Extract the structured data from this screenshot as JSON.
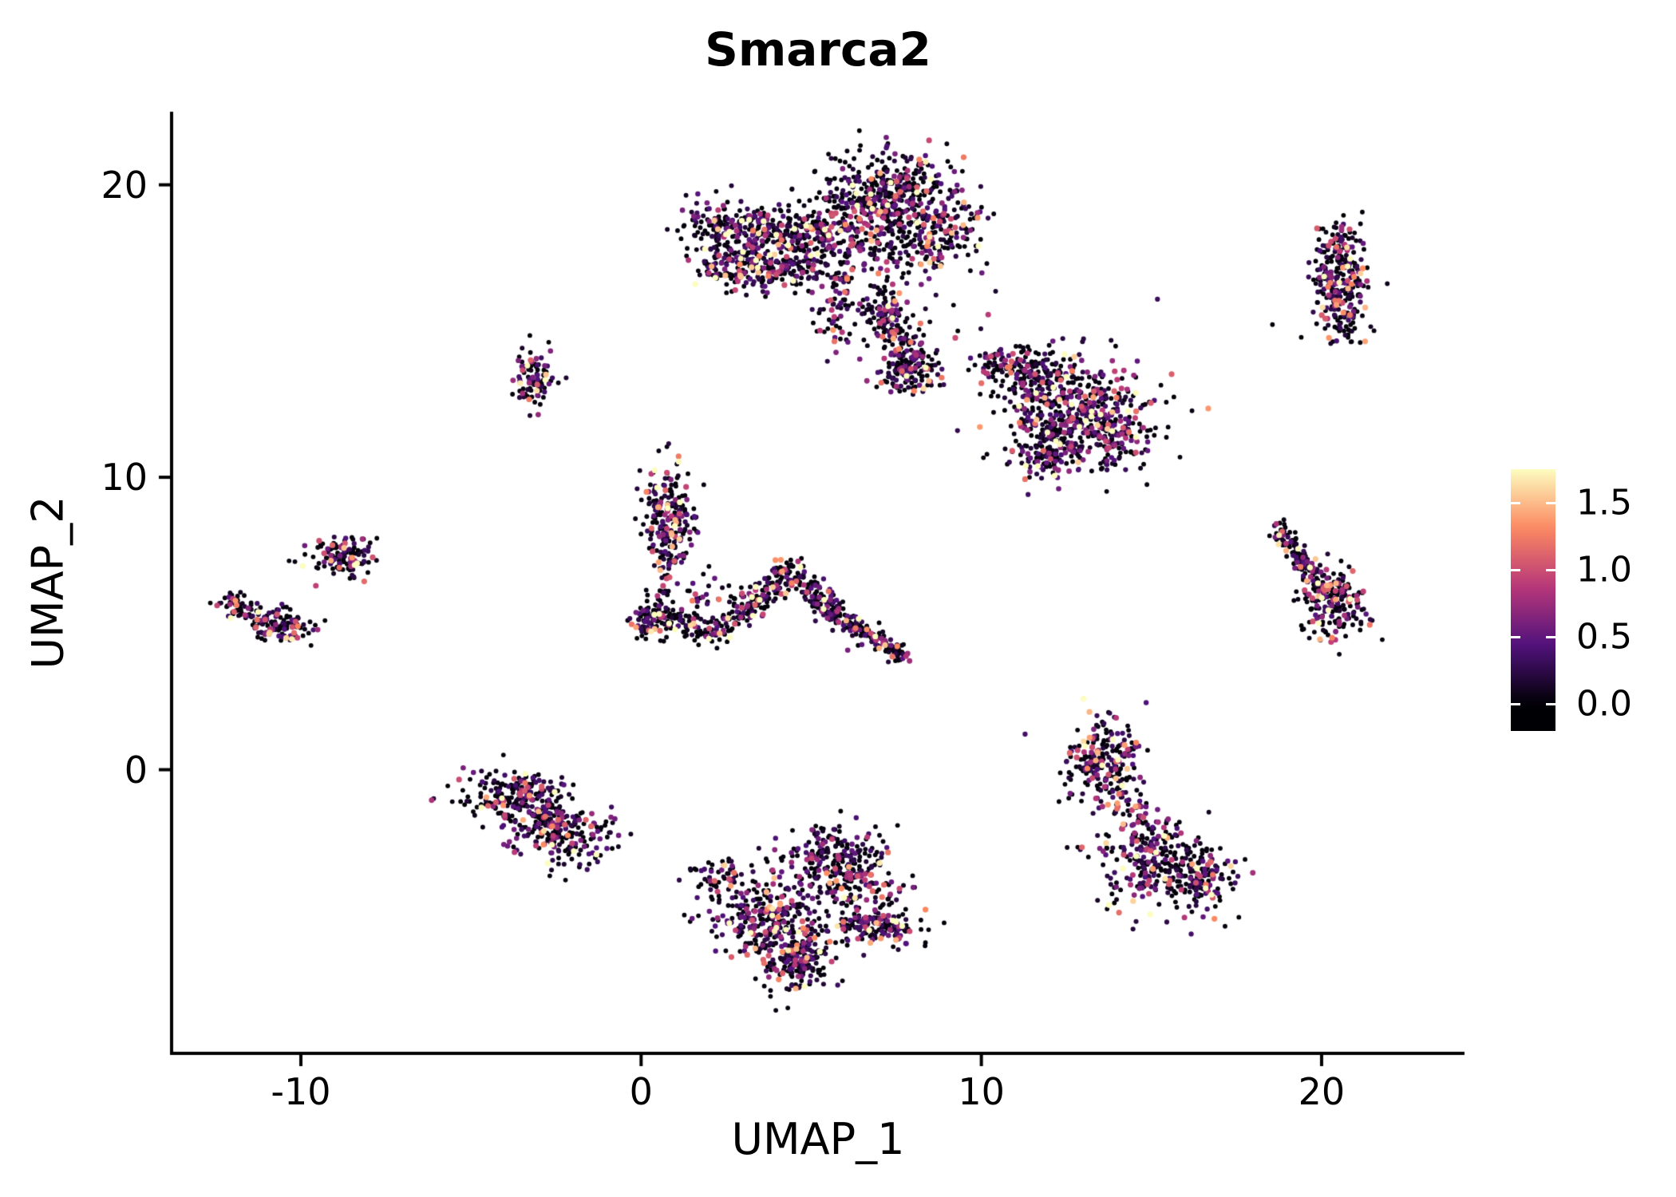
{
  "chart_data": {
    "type": "scatter",
    "title": "Smarca2",
    "xlabel": "UMAP_1",
    "ylabel": "UMAP_2",
    "xlim": [
      -13.8,
      24.2
    ],
    "ylim": [
      -9.7,
      22.5
    ],
    "xticks": [
      -10,
      0,
      10,
      20
    ],
    "yticks": [
      0,
      10,
      20
    ],
    "grid": false,
    "legend_position": "right",
    "seed": 42,
    "point_vmax": 1.75,
    "zero_fraction": 0.42,
    "expr_mean": 0.5,
    "colormap": {
      "name": "magma",
      "stops": [
        [
          0,
          "#000004"
        ],
        [
          0.25,
          "#51127c"
        ],
        [
          0.5,
          "#b73779"
        ],
        [
          0.75,
          "#fc8961"
        ],
        [
          1,
          "#fcfdbf"
        ]
      ]
    },
    "colorbar": {
      "ticks": [
        0,
        0.5,
        1,
        1.5
      ],
      "tick_labels": [
        "0.0",
        "0.5",
        "1.0",
        "1.5"
      ],
      "vmin": -0.2,
      "vmax": 1.75
    },
    "clusters": [
      {
        "kind": "strip",
        "x1": 1.7,
        "y1": 18.6,
        "x2": 5.6,
        "y2": 18.2,
        "s": 0.45,
        "n": 380
      },
      {
        "kind": "strip",
        "x1": 1.9,
        "y1": 17.3,
        "x2": 5.2,
        "y2": 17.0,
        "s": 0.35,
        "n": 260
      },
      {
        "kind": "blob",
        "x": 7.5,
        "y": 19.7,
        "sx": 0.9,
        "sy": 0.8,
        "n": 300
      },
      {
        "kind": "strip",
        "x1": 5.6,
        "y1": 18.0,
        "x2": 9.3,
        "y2": 17.8,
        "s": 0.55,
        "n": 220
      },
      {
        "kind": "blob",
        "x": 9.0,
        "y": 18.6,
        "sx": 0.6,
        "sy": 0.5,
        "n": 80
      },
      {
        "kind": "strip",
        "x1": 6.9,
        "y1": 16.3,
        "x2": 8.1,
        "y2": 13.7,
        "s": 0.3,
        "n": 170
      },
      {
        "kind": "blob",
        "x": 7.9,
        "y": 13.5,
        "sx": 0.45,
        "sy": 0.35,
        "n": 110
      },
      {
        "kind": "strip",
        "x1": 5.9,
        "y1": 16.9,
        "x2": 5.5,
        "y2": 14.7,
        "s": 0.25,
        "n": 55
      },
      {
        "kind": "blob",
        "x": 7.3,
        "y": 15.0,
        "sx": 1.1,
        "sy": 0.7,
        "n": 55
      },
      {
        "kind": "blob",
        "x": 10.4,
        "y": 13.9,
        "sx": 0.35,
        "sy": 0.3,
        "n": 45
      },
      {
        "kind": "blob",
        "x": 6.4,
        "y": 19.3,
        "sx": 0.7,
        "sy": 0.6,
        "n": 120
      },
      {
        "kind": "blob",
        "x": 12.7,
        "y": 12.2,
        "sx": 1.05,
        "sy": 0.95,
        "n": 520
      },
      {
        "kind": "blob",
        "x": 11.5,
        "y": 13.6,
        "sx": 0.55,
        "sy": 0.45,
        "n": 110
      },
      {
        "kind": "blob",
        "x": 14.0,
        "y": 11.3,
        "sx": 0.5,
        "sy": 0.5,
        "n": 90
      },
      {
        "kind": "blob",
        "x": 12.0,
        "y": 10.8,
        "sx": 0.5,
        "sy": 0.4,
        "n": 80
      },
      {
        "kind": "strip",
        "x1": 20.5,
        "y1": 18.3,
        "x2": 20.6,
        "y2": 15.1,
        "s": 0.42,
        "n": 300
      },
      {
        "kind": "blob",
        "x": -3.1,
        "y": 13.5,
        "sx": 0.3,
        "sy": 0.55,
        "n": 90
      },
      {
        "kind": "blob",
        "x": 0.9,
        "y": 8.6,
        "sx": 0.42,
        "sy": 0.85,
        "n": 210
      },
      {
        "kind": "blob",
        "x": 0.3,
        "y": 5.1,
        "sx": 0.35,
        "sy": 0.3,
        "n": 80
      },
      {
        "kind": "strip",
        "x1": 0.7,
        "y1": 5.1,
        "x2": 2.4,
        "y2": 4.7,
        "s": 0.22,
        "n": 90
      },
      {
        "kind": "strip",
        "x1": 2.6,
        "y1": 4.9,
        "x2": 4.3,
        "y2": 6.8,
        "s": 0.22,
        "n": 140
      },
      {
        "kind": "strip",
        "x1": 4.4,
        "y1": 6.8,
        "x2": 5.7,
        "y2": 5.3,
        "s": 0.22,
        "n": 130
      },
      {
        "kind": "strip",
        "x1": 5.7,
        "y1": 5.3,
        "x2": 7.7,
        "y2": 3.9,
        "s": 0.18,
        "n": 150
      },
      {
        "kind": "blob",
        "x": 2.0,
        "y": 5.8,
        "sx": 0.6,
        "sy": 0.6,
        "n": 45
      },
      {
        "kind": "strip",
        "x1": 0.8,
        "y1": 7.3,
        "x2": 0.5,
        "y2": 5.6,
        "s": 0.2,
        "n": 40
      },
      {
        "kind": "blob",
        "x": -8.8,
        "y": 7.3,
        "sx": 0.5,
        "sy": 0.35,
        "n": 120
      },
      {
        "kind": "strip",
        "x1": -12.3,
        "y1": 5.9,
        "x2": -10.7,
        "y2": 4.9,
        "s": 0.2,
        "n": 90
      },
      {
        "kind": "blob",
        "x": -10.5,
        "y": 4.9,
        "sx": 0.45,
        "sy": 0.3,
        "n": 80
      },
      {
        "kind": "strip",
        "x1": 18.6,
        "y1": 8.4,
        "x2": 20.1,
        "y2": 6.1,
        "s": 0.16,
        "n": 130
      },
      {
        "kind": "blob",
        "x": 20.3,
        "y": 5.7,
        "sx": 0.5,
        "sy": 0.65,
        "n": 200
      },
      {
        "kind": "blob",
        "x": -3.7,
        "y": -0.9,
        "sx": 0.75,
        "sy": 0.45,
        "n": 210
      },
      {
        "kind": "blob",
        "x": -2.3,
        "y": -2.2,
        "sx": 0.7,
        "sy": 0.5,
        "n": 190
      },
      {
        "kind": "strip",
        "x1": -3.0,
        "y1": -1.3,
        "x2": -2.6,
        "y2": -1.9,
        "s": 0.3,
        "n": 50
      },
      {
        "kind": "blob",
        "x": 5.8,
        "y": -3.2,
        "sx": 0.75,
        "sy": 0.65,
        "n": 260
      },
      {
        "kind": "blob",
        "x": 3.7,
        "y": -5.1,
        "sx": 0.85,
        "sy": 0.75,
        "n": 300
      },
      {
        "kind": "blob",
        "x": 4.6,
        "y": -6.5,
        "sx": 0.55,
        "sy": 0.65,
        "n": 190
      },
      {
        "kind": "strip",
        "x1": 6.0,
        "y1": -5.3,
        "x2": 7.9,
        "y2": -5.5,
        "s": 0.3,
        "n": 140
      },
      {
        "kind": "blob",
        "x": 2.3,
        "y": -3.6,
        "sx": 0.35,
        "sy": 0.3,
        "n": 45
      },
      {
        "kind": "blob",
        "x": 6.6,
        "y": -4.5,
        "sx": 0.8,
        "sy": 0.6,
        "n": 70
      },
      {
        "kind": "blob",
        "x": 13.6,
        "y": 0.3,
        "sx": 0.55,
        "sy": 0.75,
        "n": 230
      },
      {
        "kind": "blob",
        "x": 15.3,
        "y": -3.3,
        "sx": 0.95,
        "sy": 0.75,
        "n": 310
      },
      {
        "kind": "strip",
        "x1": 14.1,
        "y1": -0.9,
        "x2": 15.1,
        "y2": -2.3,
        "s": 0.35,
        "n": 60
      },
      {
        "kind": "blob",
        "x": 16.4,
        "y": -3.9,
        "sx": 0.5,
        "sy": 0.4,
        "n": 70
      }
    ]
  }
}
